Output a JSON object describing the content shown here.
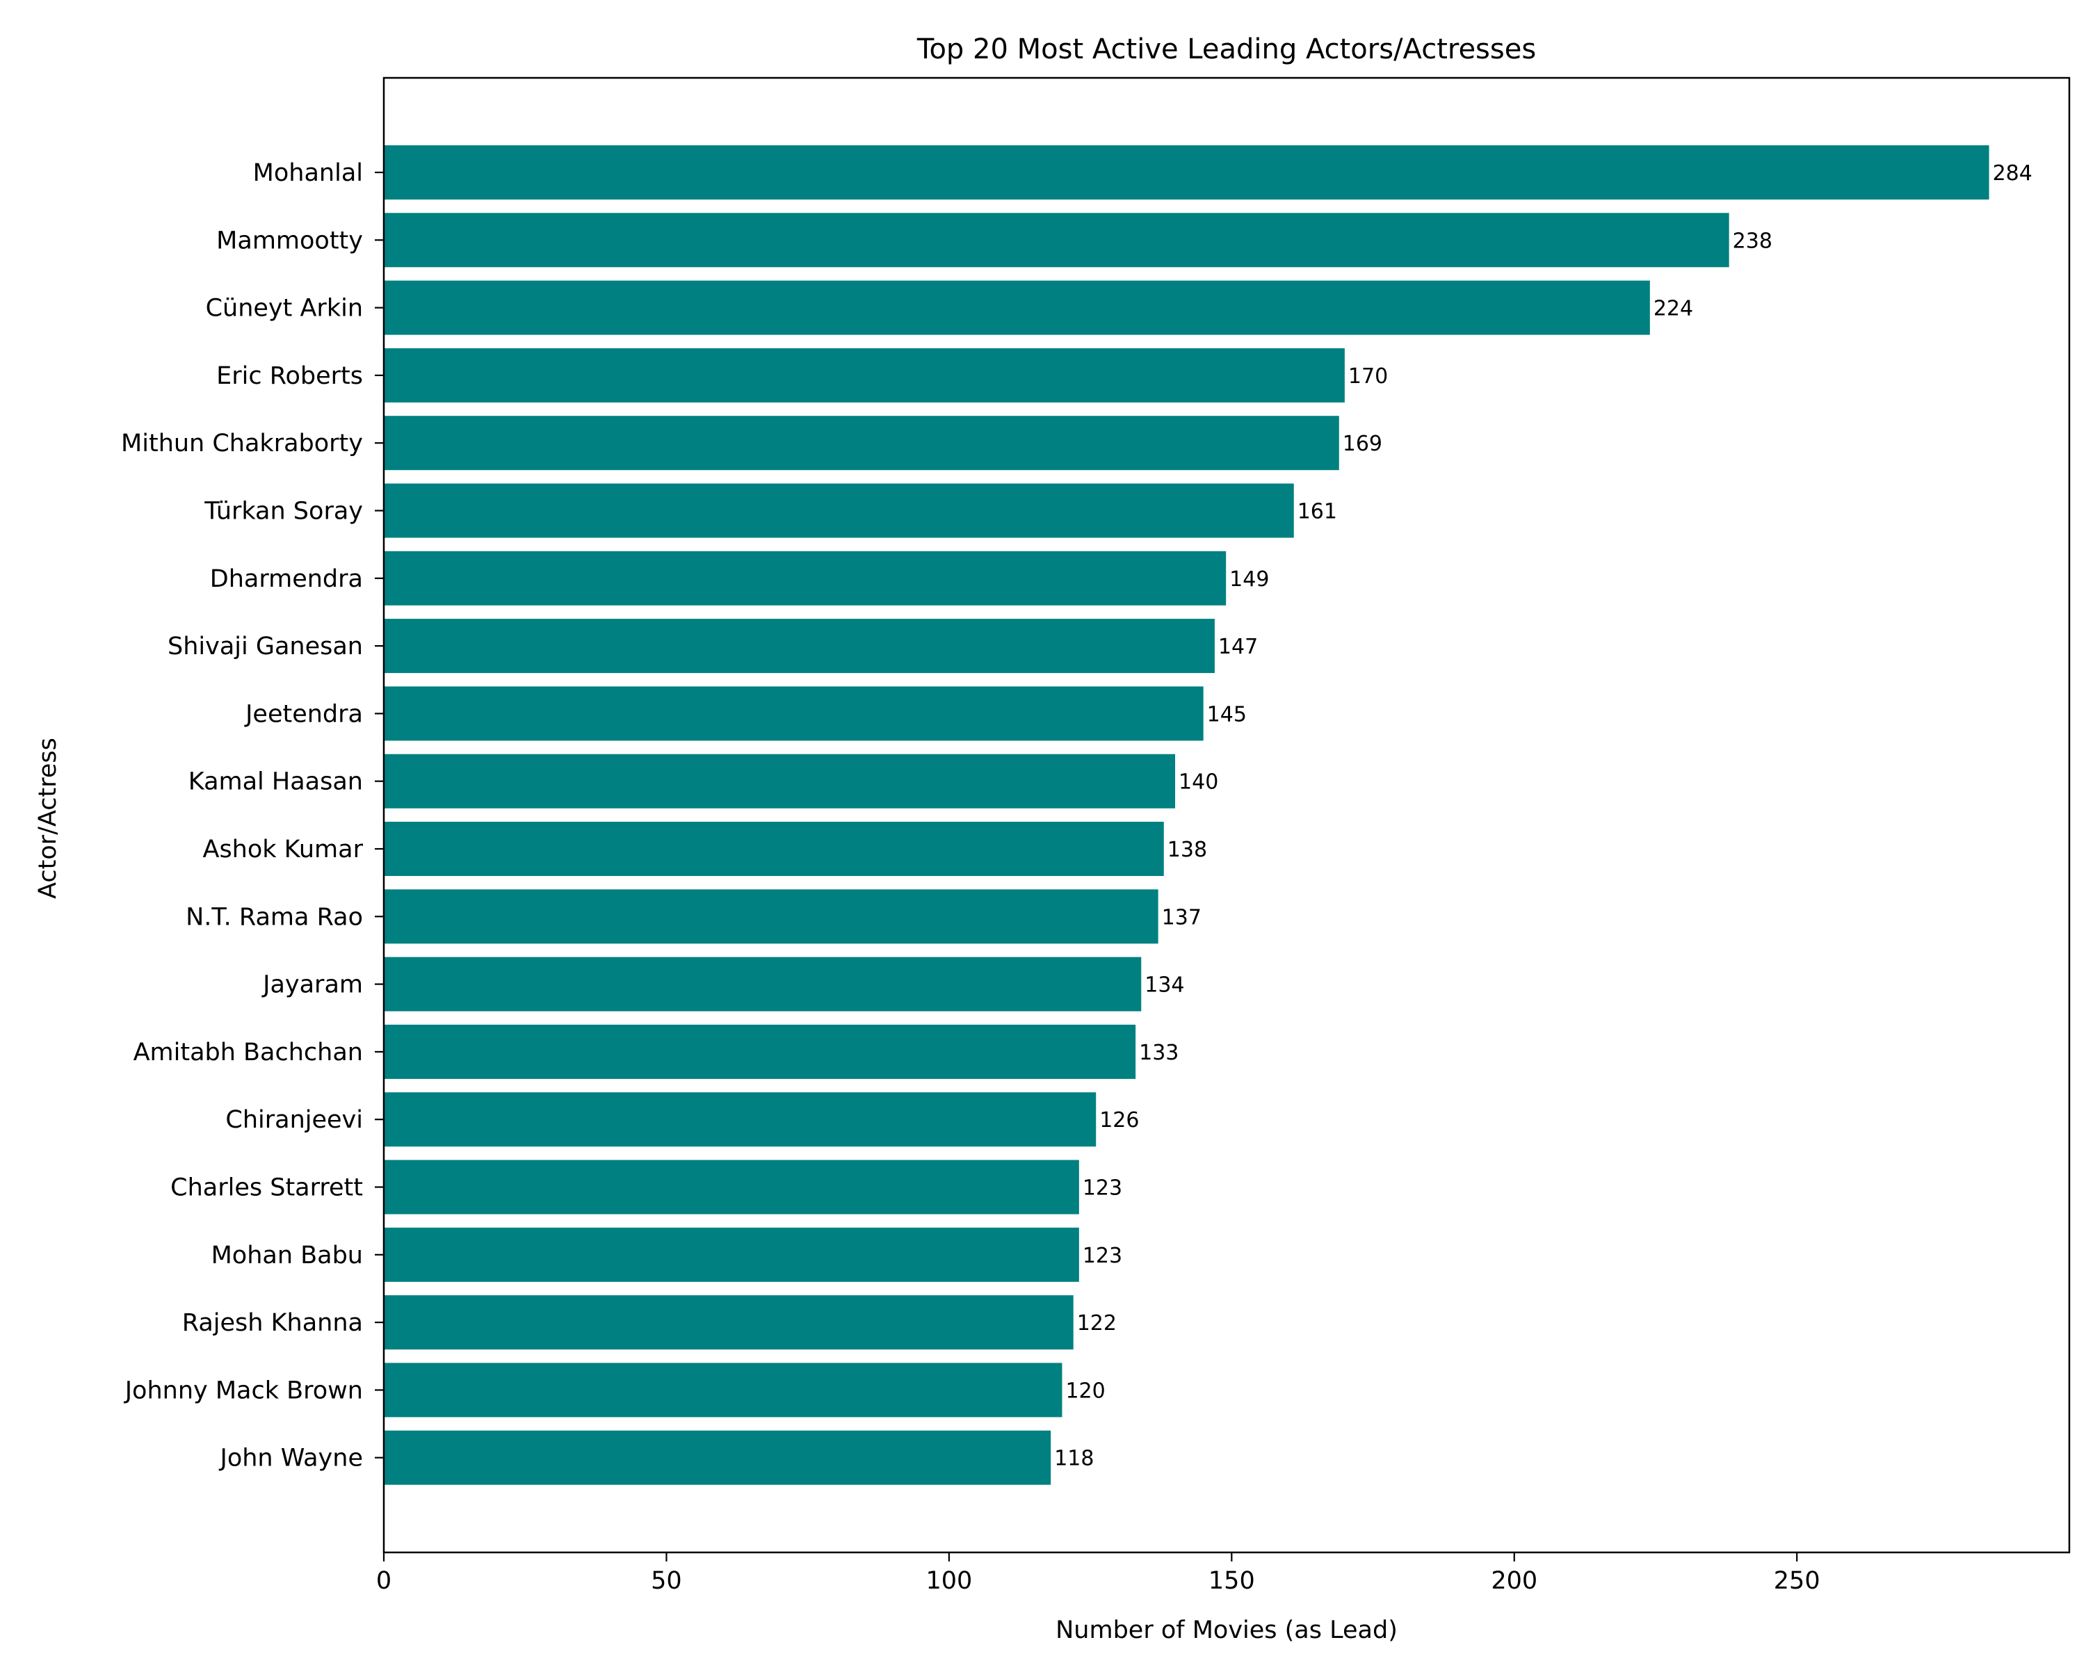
{
  "chart_data": {
    "type": "bar",
    "orientation": "horizontal",
    "title": "Top 20 Most Active Leading Actors/Actresses",
    "xlabel": "Number of Movies (as Lead)",
    "ylabel": "Actor/Actress",
    "xlim": [
      0,
      298.2
    ],
    "x_ticks": [
      0,
      50,
      100,
      150,
      200,
      250
    ],
    "grid": false,
    "legend": "none",
    "bar_color": "#008080",
    "categories": [
      "Mohanlal",
      "Mammootty",
      "Cüneyt Arkin",
      "Eric Roberts",
      "Mithun Chakraborty",
      "Türkan Soray",
      "Dharmendra",
      "Shivaji Ganesan",
      "Jeetendra",
      "Kamal Haasan",
      "Ashok Kumar",
      "N.T. Rama Rao",
      "Jayaram",
      "Amitabh Bachchan",
      "Chiranjeevi",
      "Charles Starrett",
      "Mohan Babu",
      "Rajesh Khanna",
      "Johnny Mack Brown",
      "John Wayne"
    ],
    "values": [
      284,
      238,
      224,
      170,
      169,
      161,
      149,
      147,
      145,
      140,
      138,
      137,
      134,
      133,
      126,
      123,
      123,
      122,
      120,
      118
    ]
  }
}
